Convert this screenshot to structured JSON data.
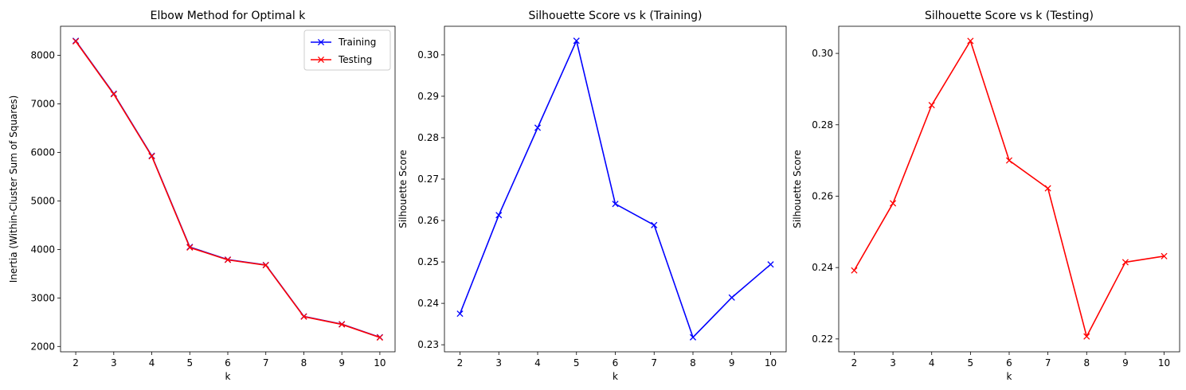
{
  "chart_data": [
    {
      "type": "line",
      "title": "Elbow Method for Optimal k",
      "xlabel": "k",
      "ylabel": "Inertia (Within-Cluster Sum of Squares)",
      "x": [
        2,
        3,
        4,
        5,
        6,
        7,
        8,
        9,
        10
      ],
      "xticks": [
        2,
        3,
        4,
        5,
        6,
        7,
        8,
        9,
        10
      ],
      "xlim": [
        1.6,
        10.4
      ],
      "ylim": [
        1890,
        8600
      ],
      "yticks": [
        2000,
        3000,
        4000,
        5000,
        6000,
        7000,
        8000
      ],
      "ytick_labels": [
        "2000",
        "3000",
        "4000",
        "5000",
        "6000",
        "7000",
        "8000"
      ],
      "legend": "top-right",
      "grid": false,
      "series": [
        {
          "name": "Training",
          "color": "#0000ff",
          "marker": "x",
          "values": [
            8300,
            7210,
            5930,
            4050,
            3790,
            3680,
            2620,
            2460,
            2190
          ]
        },
        {
          "name": "Testing",
          "color": "#ff0000",
          "marker": "x",
          "values": [
            8290,
            7200,
            5920,
            4040,
            3785,
            3675,
            2615,
            2455,
            2185
          ]
        }
      ]
    },
    {
      "type": "line",
      "title": "Silhouette Score vs k (Training)",
      "xlabel": "k",
      "ylabel": "Silhouette Score",
      "x": [
        2,
        3,
        4,
        5,
        6,
        7,
        8,
        9,
        10
      ],
      "xticks": [
        2,
        3,
        4,
        5,
        6,
        7,
        8,
        9,
        10
      ],
      "xlim": [
        1.6,
        10.4
      ],
      "ylim": [
        0.2283,
        0.3069
      ],
      "yticks": [
        0.23,
        0.24,
        0.25,
        0.26,
        0.27,
        0.28,
        0.29,
        0.3
      ],
      "ytick_labels": [
        "0.23",
        "0.24",
        "0.25",
        "0.26",
        "0.27",
        "0.28",
        "0.29",
        "0.30"
      ],
      "grid": false,
      "series": [
        {
          "color": "#0000ff",
          "marker": "x",
          "values": [
            0.2375,
            0.2613,
            0.2824,
            0.3034,
            0.264,
            0.2589,
            0.2318,
            0.2414,
            0.2494
          ]
        }
      ]
    },
    {
      "type": "line",
      "title": "Silhouette Score vs k (Testing)",
      "xlabel": "k",
      "ylabel": "Silhouette Score",
      "x": [
        2,
        3,
        4,
        5,
        6,
        7,
        8,
        9,
        10
      ],
      "xticks": [
        2,
        3,
        4,
        5,
        6,
        7,
        8,
        9,
        10
      ],
      "xlim": [
        1.6,
        10.4
      ],
      "ylim": [
        0.2164,
        0.3076
      ],
      "yticks": [
        0.22,
        0.24,
        0.26,
        0.28,
        0.3
      ],
      "ytick_labels": [
        "0.22",
        "0.24",
        "0.26",
        "0.28",
        "0.30"
      ],
      "grid": false,
      "series": [
        {
          "color": "#ff0000",
          "marker": "x",
          "values": [
            0.2392,
            0.258,
            0.2855,
            0.3035,
            0.27,
            0.2622,
            0.2207,
            0.2415,
            0.2432
          ]
        }
      ]
    }
  ]
}
